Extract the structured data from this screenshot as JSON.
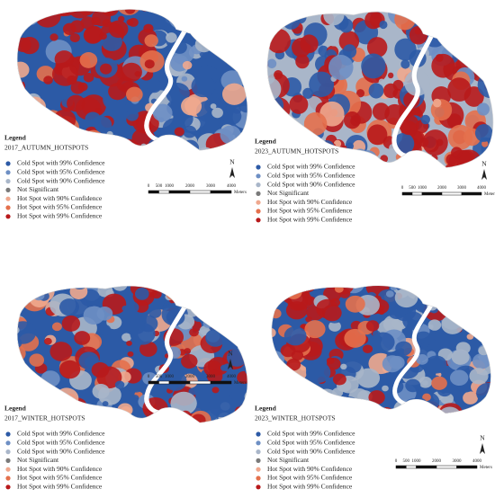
{
  "panels": [
    {
      "legend_title": "Legend",
      "title": "2017_AUTUMN_HOTSPOTS",
      "legend": [
        {
          "label": "Cold Spot with 99% Confidence",
          "color": "#2c5aa6"
        },
        {
          "label": "Cold Spot with 95% Confidence",
          "color": "#6e8fc4"
        },
        {
          "label": "Cold Spot with 90% Confidence",
          "color": "#a9b6c9"
        },
        {
          "label": "Not Significant",
          "color": "#7a7a7a"
        },
        {
          "label": "Hot Spot with 90% Confidence",
          "color": "#efa88e"
        },
        {
          "label": "Hot Spot with 95% Confidence",
          "color": "#e4704c"
        },
        {
          "label": "Hot Spot with 99% Confidence",
          "color": "#b8191b"
        }
      ],
      "north": "N",
      "scale": {
        "ticks": [
          0,
          500,
          1000,
          2000,
          3000,
          4000
        ],
        "unit": "Meters"
      }
    },
    {
      "legend_title": "Legend",
      "title": "2023_AUTUMN_HOTSPOTS",
      "legend": [
        {
          "label": "Cold Spot with 99% Confidence",
          "color": "#2c5aa6"
        },
        {
          "label": "Cold Spot with 95% Confidence",
          "color": "#6e8fc4"
        },
        {
          "label": "Cold Spot with 90% Confidence",
          "color": "#a9b6c9"
        },
        {
          "label": "Not Significant",
          "color": "#7a7a7a"
        },
        {
          "label": "Hot Spot with 90% Confidence",
          "color": "#efa88e"
        },
        {
          "label": "Hot Spot with 95% Confidence",
          "color": "#e4704c"
        },
        {
          "label": "Hot Spot with 99% Confidence",
          "color": "#b8191b"
        }
      ],
      "north": "N",
      "scale": {
        "ticks": [
          0,
          500,
          1000,
          2000,
          3000,
          4000
        ],
        "unit": "Meters"
      }
    },
    {
      "legend_title": "Legend",
      "title": "2017_WINTER_HOTSPOTS",
      "legend": [
        {
          "label": "Cold Spot with 99% Confidence",
          "color": "#2c5aa6"
        },
        {
          "label": "Cold Spot with 95% Confidence",
          "color": "#6e8fc4"
        },
        {
          "label": "Cold Spot with 90% Confidence",
          "color": "#a9b6c9"
        },
        {
          "label": "Not Significant",
          "color": "#7a7a7a"
        },
        {
          "label": "Hot Spot with 90% Confidence",
          "color": "#efa88e"
        },
        {
          "label": "Hot Spot with 95% Confidence",
          "color": "#e4704c"
        },
        {
          "label": "Hot Spot with 99% Confidence",
          "color": "#b8191b"
        }
      ],
      "north": "N",
      "scale": {
        "ticks": [
          0,
          500,
          1000,
          2000,
          3000,
          4000
        ],
        "unit": "Meters"
      }
    },
    {
      "legend_title": "Legend",
      "title": "2023_WINTER_HOTSPOTS",
      "legend": [
        {
          "label": "Cold Spot with 99% Confidence",
          "color": "#2c5aa6"
        },
        {
          "label": "Cold Spot with 95% Confidence",
          "color": "#6e8fc4"
        },
        {
          "label": "Cold Spot with 90% Confidence",
          "color": "#a9b6c9"
        },
        {
          "label": "Not Significant",
          "color": "#7a7a7a"
        },
        {
          "label": "Hot Spot with 90% Confidence",
          "color": "#efa88e"
        },
        {
          "label": "Hot Spot with 95% Confidence",
          "color": "#e4704c"
        },
        {
          "label": "Hot Spot with 99% Confidence",
          "color": "#b8191b"
        }
      ],
      "north": "N",
      "scale": {
        "ticks": [
          0,
          500,
          1000,
          2000,
          3000,
          4000
        ],
        "unit": "Meters"
      }
    }
  ]
}
